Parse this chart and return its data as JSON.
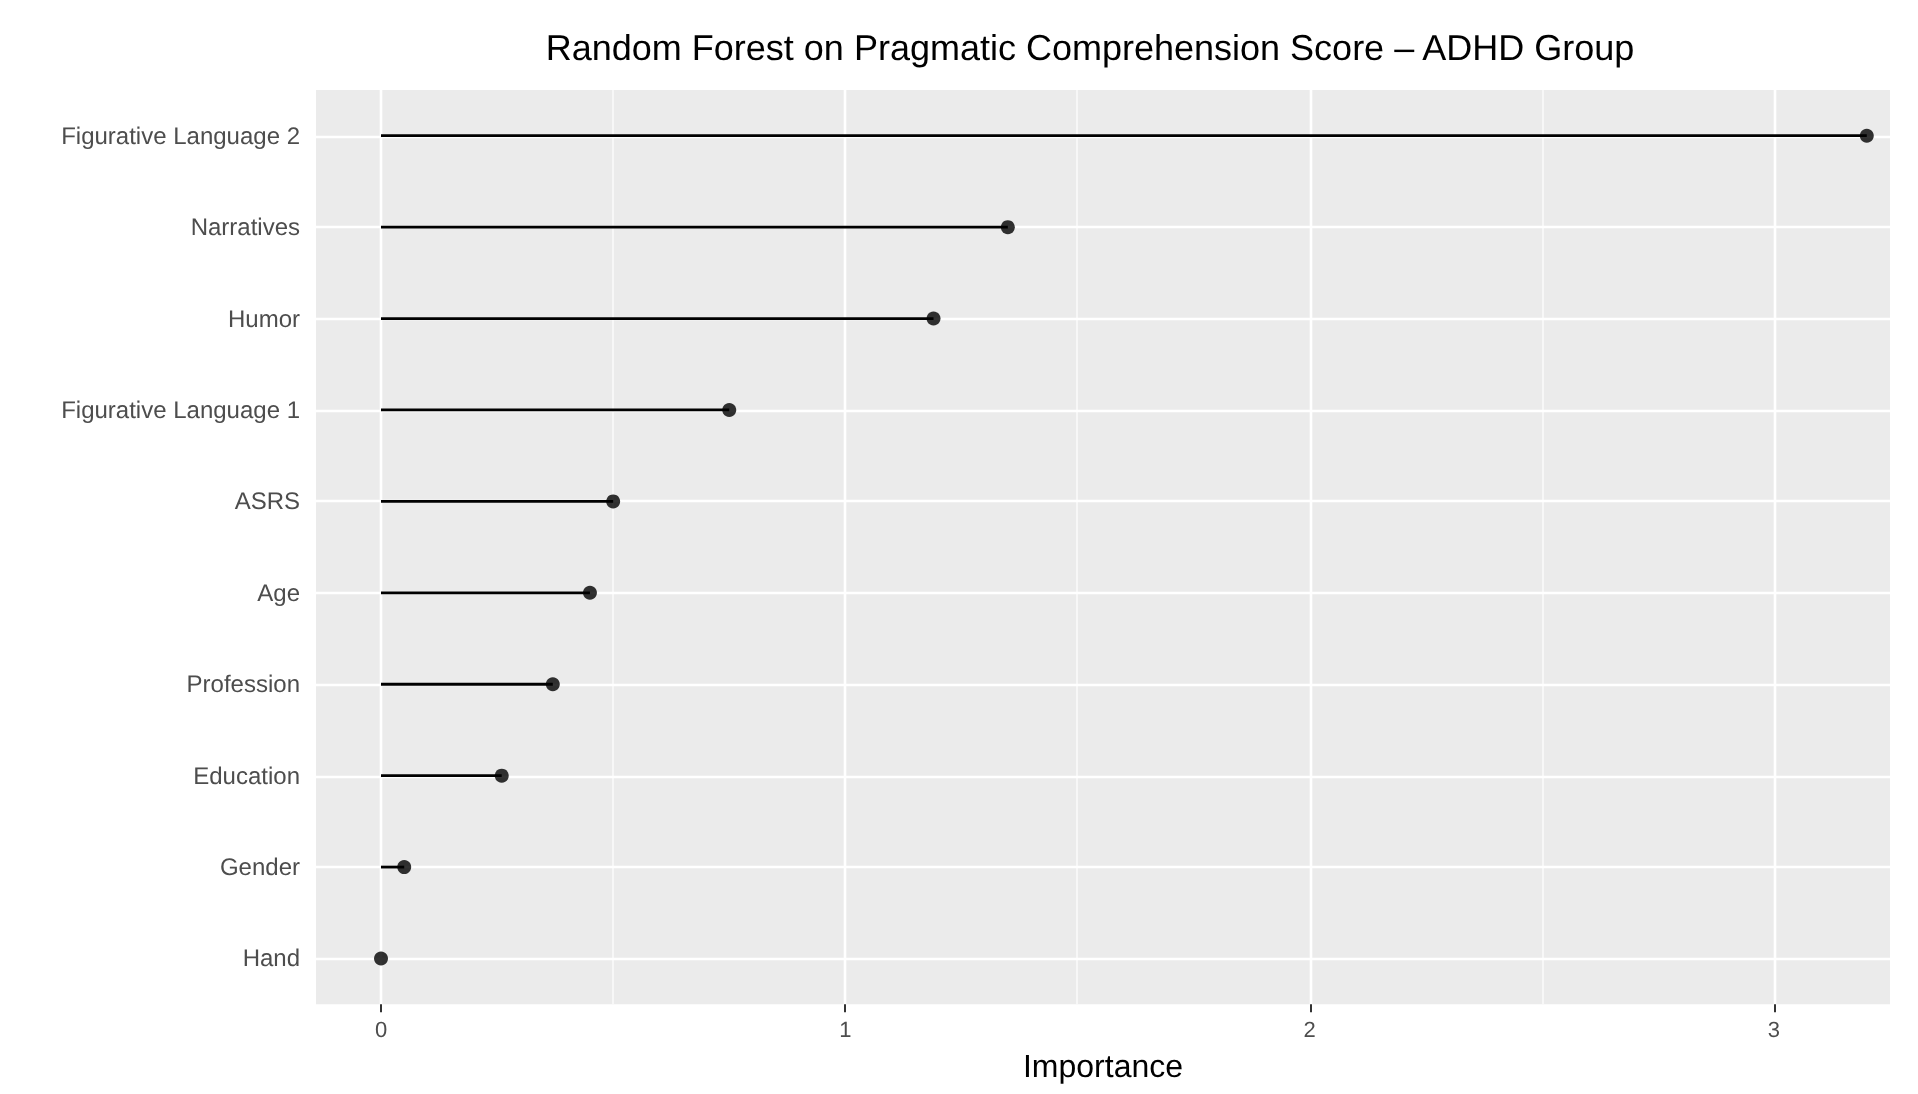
{
  "chart_data": {
    "type": "lollipop",
    "title": "Random Forest on Pragmatic Comprehension Score – ADHD Group",
    "xlabel": "Importance",
    "orientation": "horizontal",
    "categories": [
      "Figurative Language 2",
      "Narratives",
      "Humor",
      "Figurative Language 1",
      "ASRS",
      "Age",
      "Profession",
      "Education",
      "Gender",
      "Hand"
    ],
    "values": [
      3.2,
      1.35,
      1.19,
      0.75,
      0.5,
      0.45,
      0.37,
      0.26,
      0.05,
      0
    ],
    "color": "#000000",
    "xlim": [
      -0.14,
      3.25
    ],
    "xticks": [
      0,
      1,
      2,
      3
    ],
    "grid": true,
    "marker": "circle"
  }
}
